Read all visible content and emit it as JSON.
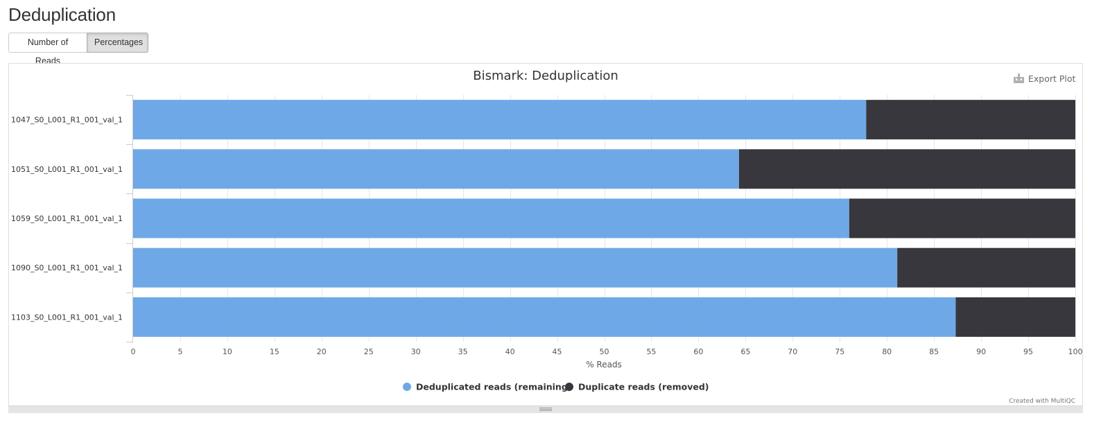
{
  "page": {
    "title": "Deduplication"
  },
  "toggle": {
    "reads_label": "Number of Reads",
    "percent_label": "Percentages"
  },
  "export_label": "Export Plot",
  "credit": "Created with MultiQC",
  "colors": {
    "deduplicated": "#6fa8e6",
    "duplicate": "#38373d",
    "grid": "#e6e6e6"
  },
  "chart_data": {
    "type": "bar",
    "orientation": "horizontal",
    "stacked": true,
    "title": "Bismark: Deduplication",
    "xlabel": "% Reads",
    "ylabel": "",
    "xlim": [
      0,
      100
    ],
    "xticks": [
      0,
      5,
      10,
      15,
      20,
      25,
      30,
      35,
      40,
      45,
      50,
      55,
      60,
      65,
      70,
      75,
      80,
      85,
      90,
      95,
      100
    ],
    "grid": true,
    "legend_position": "bottom-center",
    "categories": [
      "1047_S0_L001_R1_001_val_1",
      "1051_S0_L001_R1_001_val_1",
      "1059_S0_L001_R1_001_val_1",
      "1090_S0_L001_R1_001_val_1",
      "1103_S0_L001_R1_001_val_1"
    ],
    "series": [
      {
        "name": "Deduplicated reads (remaining)",
        "color": "#6fa8e6",
        "values": [
          77.8,
          64.3,
          76.0,
          81.1,
          87.3
        ]
      },
      {
        "name": "Duplicate reads (removed)",
        "color": "#38373d",
        "values": [
          22.2,
          35.7,
          24.0,
          18.9,
          12.7
        ]
      }
    ]
  }
}
